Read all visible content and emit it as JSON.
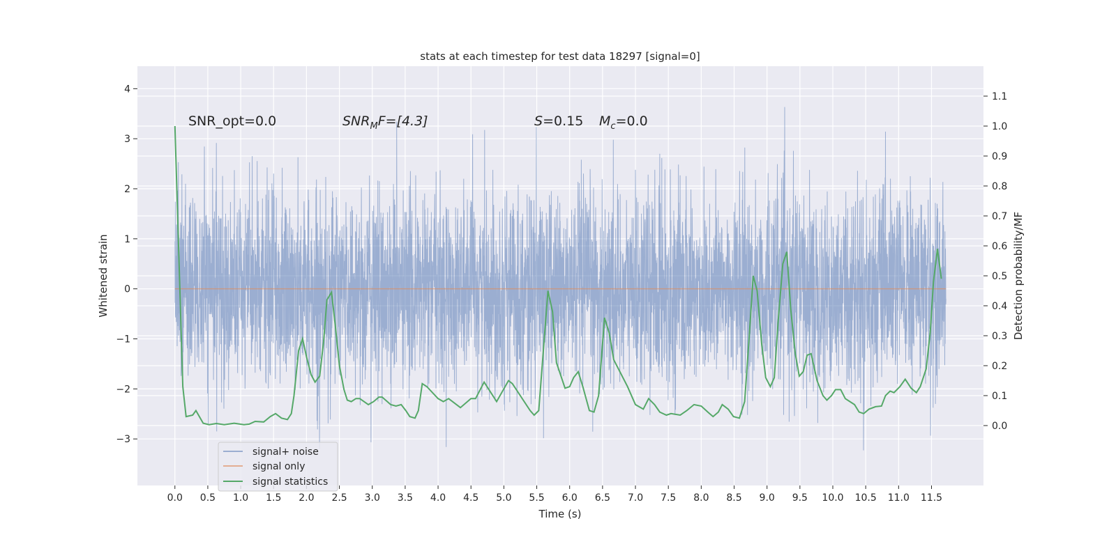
{
  "chart_data": {
    "type": "line",
    "title": "stats at each timestep for test data 18297 [signal=0]",
    "xlabel": "Time (s)",
    "ylabel": "Whitened strain",
    "ylabel_right": "Detection probability/MF",
    "xlim": [
      -0.57,
      12.29
    ],
    "ylim": [
      -3.93,
      4.45
    ],
    "ylim_right": [
      -0.2,
      1.2
    ],
    "grid": true,
    "legend_position": "lower-left",
    "xticks": [
      "0.0",
      "0.5",
      "1.0",
      "1.5",
      "2.0",
      "2.5",
      "3.0",
      "3.5",
      "4.0",
      "4.5",
      "5.0",
      "5.5",
      "6.0",
      "6.5",
      "7.0",
      "7.5",
      "8.0",
      "8.5",
      "9.0",
      "9.5",
      "10.0",
      "10.5",
      "11.0",
      "11.5"
    ],
    "yticks": [
      "4",
      "3",
      "2",
      "1",
      "0",
      "−1",
      "−2",
      "−3"
    ],
    "yticks_values": [
      4,
      3,
      2,
      1,
      0,
      -1,
      -2,
      -3
    ],
    "yticks_right": [
      "1.1",
      "1.0",
      "0.9",
      "0.8",
      "0.7",
      "0.6",
      "0.5",
      "0.4",
      "0.3",
      "0.2",
      "0.1",
      "0.0"
    ],
    "yticks_right_values": [
      1.1,
      1.0,
      0.9,
      0.8,
      0.7,
      0.6,
      0.5,
      0.4,
      0.3,
      0.2,
      0.1,
      0.0
    ],
    "annotations": {
      "snr_opt": "SNR_opt=0.0",
      "snr_mf_main": "SNR",
      "snr_mf_sub": "M",
      "snr_mf_rest": "F=[4.3]",
      "s_main": "S",
      "s_rest": "=0.15",
      "mc_main": "M",
      "mc_sub": "c",
      "mc_rest": "=0.0"
    },
    "series": [
      {
        "name": "signal+ noise",
        "color": "#4c72b0",
        "axis": "left",
        "t_range": [
          0.0,
          11.72
        ],
        "approx_std": 1.0,
        "approx_min": -3.6,
        "approx_max": 4.1
      },
      {
        "name": "signal only",
        "color": "#dd8452",
        "axis": "left",
        "t_range": [
          0.0,
          11.72
        ],
        "value": 0.0
      },
      {
        "name": "signal statistics",
        "color": "#55a868",
        "axis": "right",
        "points": [
          [
            0,
            1.0
          ],
          [
            0.12,
            0.13
          ],
          [
            0.17,
            0.03
          ],
          [
            0.27,
            0.035
          ],
          [
            0.32,
            0.05
          ],
          [
            0.43,
            0.008
          ],
          [
            0.52,
            0.003
          ],
          [
            0.63,
            0.007
          ],
          [
            0.75,
            0.003
          ],
          [
            0.9,
            0.008
          ],
          [
            1.05,
            0.003
          ],
          [
            1.13,
            0.005
          ],
          [
            1.22,
            0.014
          ],
          [
            1.35,
            0.012
          ],
          [
            1.45,
            0.03
          ],
          [
            1.53,
            0.04
          ],
          [
            1.62,
            0.025
          ],
          [
            1.71,
            0.02
          ],
          [
            1.77,
            0.04
          ],
          [
            1.81,
            0.1
          ],
          [
            1.88,
            0.25
          ],
          [
            1.94,
            0.29
          ],
          [
            2.0,
            0.23
          ],
          [
            2.07,
            0.17
          ],
          [
            2.13,
            0.145
          ],
          [
            2.2,
            0.165
          ],
          [
            2.26,
            0.28
          ],
          [
            2.31,
            0.42
          ],
          [
            2.38,
            0.445
          ],
          [
            2.44,
            0.33
          ],
          [
            2.5,
            0.2
          ],
          [
            2.57,
            0.12
          ],
          [
            2.62,
            0.085
          ],
          [
            2.68,
            0.08
          ],
          [
            2.75,
            0.09
          ],
          [
            2.81,
            0.09
          ],
          [
            2.94,
            0.07
          ],
          [
            3.02,
            0.08
          ],
          [
            3.1,
            0.095
          ],
          [
            3.15,
            0.095
          ],
          [
            3.28,
            0.07
          ],
          [
            3.36,
            0.065
          ],
          [
            3.44,
            0.07
          ],
          [
            3.51,
            0.05
          ],
          [
            3.57,
            0.03
          ],
          [
            3.65,
            0.025
          ],
          [
            3.7,
            0.05
          ],
          [
            3.76,
            0.14
          ],
          [
            3.83,
            0.13
          ],
          [
            4.0,
            0.09
          ],
          [
            4.08,
            0.08
          ],
          [
            4.16,
            0.09
          ],
          [
            4.34,
            0.06
          ],
          [
            4.5,
            0.09
          ],
          [
            4.57,
            0.09
          ],
          [
            4.7,
            0.145
          ],
          [
            4.89,
            0.08
          ],
          [
            5.07,
            0.15
          ],
          [
            5.13,
            0.14
          ],
          [
            5.4,
            0.05
          ],
          [
            5.46,
            0.035
          ],
          [
            5.53,
            0.05
          ],
          [
            5.6,
            0.25
          ],
          [
            5.67,
            0.45
          ],
          [
            5.74,
            0.38
          ],
          [
            5.8,
            0.21
          ],
          [
            5.93,
            0.125
          ],
          [
            6.0,
            0.13
          ],
          [
            6.06,
            0.16
          ],
          [
            6.13,
            0.18
          ],
          [
            6.2,
            0.13
          ],
          [
            6.3,
            0.05
          ],
          [
            6.37,
            0.045
          ],
          [
            6.44,
            0.1
          ],
          [
            6.53,
            0.36
          ],
          [
            6.6,
            0.31
          ],
          [
            6.67,
            0.22
          ],
          [
            6.88,
            0.13
          ],
          [
            7.0,
            0.07
          ],
          [
            7.12,
            0.055
          ],
          [
            7.2,
            0.09
          ],
          [
            7.29,
            0.07
          ],
          [
            7.37,
            0.045
          ],
          [
            7.47,
            0.035
          ],
          [
            7.54,
            0.04
          ],
          [
            7.68,
            0.035
          ],
          [
            7.78,
            0.05
          ],
          [
            7.89,
            0.07
          ],
          [
            8.0,
            0.065
          ],
          [
            8.1,
            0.045
          ],
          [
            8.18,
            0.03
          ],
          [
            8.26,
            0.045
          ],
          [
            8.32,
            0.07
          ],
          [
            8.41,
            0.055
          ],
          [
            8.49,
            0.03
          ],
          [
            8.58,
            0.025
          ],
          [
            8.66,
            0.08
          ],
          [
            8.73,
            0.3
          ],
          [
            8.79,
            0.5
          ],
          [
            8.85,
            0.45
          ],
          [
            8.92,
            0.27
          ],
          [
            8.98,
            0.16
          ],
          [
            9.05,
            0.13
          ],
          [
            9.11,
            0.16
          ],
          [
            9.17,
            0.35
          ],
          [
            9.24,
            0.54
          ],
          [
            9.3,
            0.58
          ],
          [
            9.36,
            0.39
          ],
          [
            9.43,
            0.24
          ],
          [
            9.49,
            0.165
          ],
          [
            9.55,
            0.18
          ],
          [
            9.61,
            0.235
          ],
          [
            9.67,
            0.24
          ],
          [
            9.76,
            0.15
          ],
          [
            9.85,
            0.1
          ],
          [
            9.91,
            0.085
          ],
          [
            9.98,
            0.1
          ],
          [
            10.04,
            0.12
          ],
          [
            10.12,
            0.12
          ],
          [
            10.19,
            0.09
          ],
          [
            10.33,
            0.07
          ],
          [
            10.4,
            0.045
          ],
          [
            10.47,
            0.04
          ],
          [
            10.55,
            0.055
          ],
          [
            10.65,
            0.063
          ],
          [
            10.74,
            0.065
          ],
          [
            10.8,
            0.1
          ],
          [
            10.87,
            0.115
          ],
          [
            10.93,
            0.11
          ],
          [
            11.02,
            0.13
          ],
          [
            11.1,
            0.155
          ],
          [
            11.19,
            0.125
          ],
          [
            11.27,
            0.11
          ],
          [
            11.33,
            0.13
          ],
          [
            11.42,
            0.19
          ],
          [
            11.48,
            0.31
          ],
          [
            11.53,
            0.48
          ],
          [
            11.59,
            0.59
          ],
          [
            11.65,
            0.49
          ]
        ]
      }
    ]
  }
}
